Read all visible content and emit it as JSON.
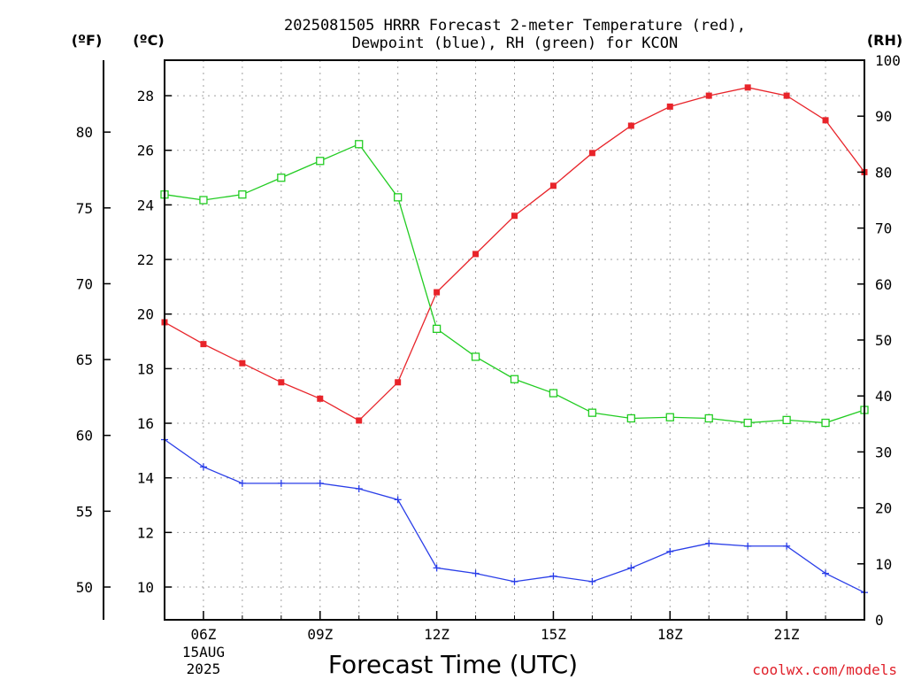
{
  "chart_data": {
    "type": "line",
    "title_lines": [
      "2025081505 HRRR Forecast 2-meter Temperature (red),",
      "Dewpoint (blue), RH (green) for KCON"
    ],
    "xlabel": "Forecast Time (UTC)",
    "credit": "coolwx.com/models",
    "left_unit_f": "(ºF)",
    "left_unit_c": "(ºC)",
    "right_unit": "(RH)",
    "x_hours": [
      5,
      6,
      7,
      8,
      9,
      10,
      11,
      12,
      13,
      14,
      15,
      16,
      17,
      18,
      19,
      20,
      21,
      22,
      23
    ],
    "x_range": [
      5,
      23
    ],
    "x_ticks": [
      {
        "hour": 6,
        "label": "06Z",
        "label2": "15AUG",
        "label3": "2025"
      },
      {
        "hour": 9,
        "label": "09Z"
      },
      {
        "hour": 12,
        "label": "12Z"
      },
      {
        "hour": 15,
        "label": "15Z"
      },
      {
        "hour": 18,
        "label": "18Z"
      },
      {
        "hour": 21,
        "label": "21Z"
      }
    ],
    "celsius_axis": {
      "range": [
        8.8,
        29.3
      ],
      "ticks": [
        10,
        12,
        14,
        16,
        18,
        20,
        22,
        24,
        26,
        28
      ]
    },
    "fahrenheit_axis": {
      "range": [
        47.84,
        84.74
      ],
      "ticks": [
        50,
        55,
        60,
        65,
        70,
        75,
        80
      ]
    },
    "rh_axis": {
      "range": [
        0,
        100
      ],
      "ticks": [
        0,
        10,
        20,
        30,
        40,
        50,
        60,
        70,
        80,
        90,
        100
      ]
    },
    "series": [
      {
        "name": "Temperature",
        "axis": "C",
        "color": "#e8242a",
        "marker": "filled-square",
        "values": [
          19.7,
          18.9,
          18.2,
          17.5,
          16.9,
          16.1,
          17.5,
          20.8,
          22.2,
          23.6,
          24.7,
          25.9,
          26.9,
          27.6,
          28.0,
          28.3,
          28.0,
          27.1,
          25.2
        ]
      },
      {
        "name": "Dewpoint",
        "axis": "C",
        "color": "#2a3ee8",
        "marker": "plus",
        "values": [
          15.4,
          14.4,
          13.8,
          13.8,
          13.8,
          13.6,
          13.2,
          10.7,
          10.5,
          10.2,
          10.4,
          10.2,
          10.7,
          11.3,
          11.6,
          11.5,
          11.5,
          10.5,
          9.8
        ]
      },
      {
        "name": "RH",
        "axis": "RH",
        "color": "#22cc22",
        "marker": "open-square",
        "values": [
          76,
          75,
          76,
          79,
          82,
          85,
          75.5,
          52,
          47,
          43,
          40.5,
          37,
          36,
          36.2,
          36,
          35.2,
          35.7,
          35.2,
          37.5
        ]
      }
    ],
    "grid": true
  }
}
